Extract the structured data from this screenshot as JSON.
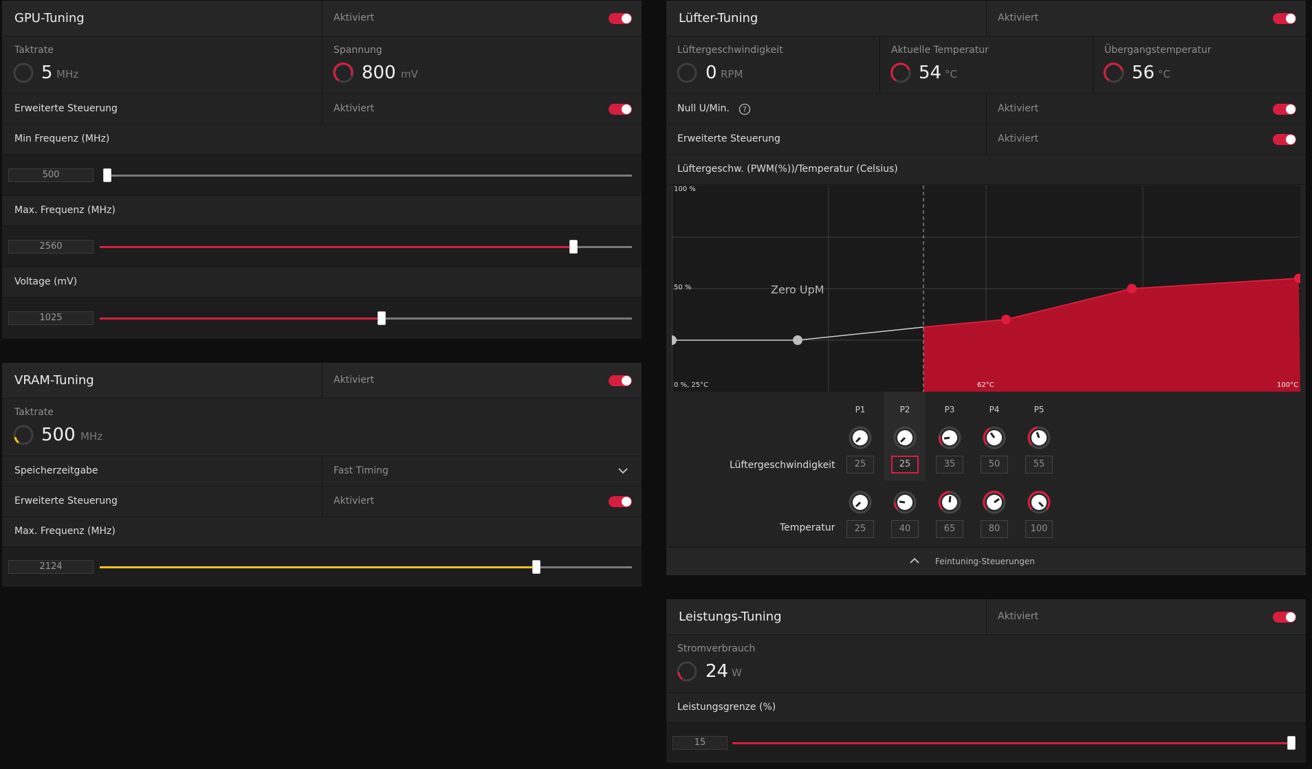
{
  "colors": {
    "accent": "#d81e3f",
    "vram": "#f5c518",
    "track": "#7a7a7a",
    "panel": "#232323"
  },
  "gpu": {
    "title": "GPU-Tuning",
    "status": "Aktiviert",
    "clock_label": "Taktrate",
    "clock_value": "5",
    "clock_unit": "MHz",
    "voltage_label": "Spannung",
    "voltage_value": "800",
    "voltage_unit": "mV",
    "advanced_label": "Erweiterte Steuerung",
    "advanced_status": "Aktiviert",
    "min_freq_label": "Min Frequenz (MHz)",
    "min_freq_value": "500",
    "min_freq_fraction": 0.0,
    "max_freq_label": "Max. Frequenz (MHz)",
    "max_freq_value": "2560",
    "max_freq_fraction": 0.89,
    "volt_label": "Voltage (mV)",
    "volt_value": "1025",
    "volt_fraction": 0.53
  },
  "vram": {
    "title": "VRAM-Tuning",
    "status": "Aktiviert",
    "clock_label": "Taktrate",
    "clock_value": "500",
    "clock_unit": "MHz",
    "timing_label": "Speicherzeitgabe",
    "timing_value": "Fast Timing",
    "advanced_label": "Erweiterte Steuerung",
    "advanced_status": "Aktiviert",
    "max_freq_label": "Max. Frequenz (MHz)",
    "max_freq_value": "2124",
    "max_freq_fraction": 0.82
  },
  "fan": {
    "title": "Lüfter-Tuning",
    "status": "Aktiviert",
    "speed_label": "Lüftergeschwindigkeit",
    "speed_value": "0",
    "speed_unit": "RPM",
    "temp_label": "Aktuelle Temperatur",
    "temp_value": "54",
    "temp_unit": "°C",
    "junction_label": "Übergangstemperatur",
    "junction_value": "56",
    "junction_unit": "°C",
    "zero_rpm_label": "Null U/Min.",
    "zero_rpm_status": "Aktiviert",
    "advanced_label": "Erweiterte Steuerung",
    "advanced_status": "Aktiviert",
    "curve_title": "Lüftergeschw. (PWM(%))/Temperatur (Celsius)",
    "curve_y_top": "100 %",
    "curve_y_mid": "50 %",
    "curve_origin": "0 %, 25°C",
    "curve_x_mid": "62°C",
    "curve_x_end": "100°C",
    "zero_label": "Zero UpM",
    "points": [
      "P1",
      "P2",
      "P3",
      "P4",
      "P5"
    ],
    "speed_row_label": "Lüftergeschwindigkeit",
    "speeds": [
      "25",
      "25",
      "35",
      "50",
      "55"
    ],
    "temp_row_label": "Temperatur",
    "temps": [
      "25",
      "40",
      "65",
      "80",
      "100"
    ],
    "fine_tuning_label": "Feintuning-Steuerungen"
  },
  "power": {
    "title": "Leistungs-Tuning",
    "status": "Aktiviert",
    "consumption_label": "Stromverbrauch",
    "consumption_value": "24",
    "consumption_unit": "W",
    "limit_label": "Leistungsgrenze (%)",
    "limit_value": "15",
    "limit_fraction": 1.0
  }
}
